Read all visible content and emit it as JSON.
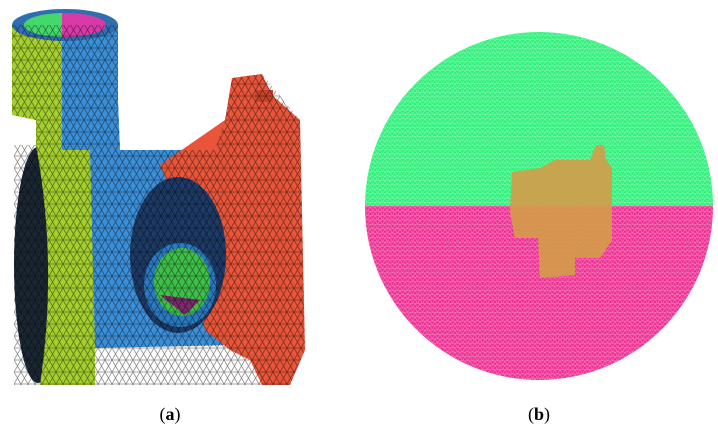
{
  "panels": [
    {
      "label": [
        "(",
        "a",
        ")"
      ]
    },
    {
      "label": [
        "(",
        "b",
        ")"
      ]
    }
  ]
}
